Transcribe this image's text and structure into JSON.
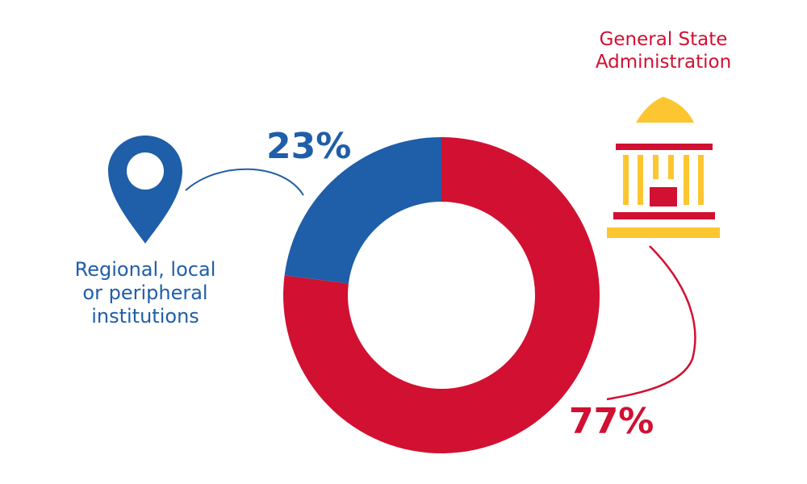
{
  "chart_data": {
    "type": "pie",
    "style": "donut",
    "categories": [
      "Regional, local or peripheral institutions",
      "General State Administration"
    ],
    "values": [
      23,
      77
    ],
    "value_labels": [
      "23%",
      "77%"
    ],
    "colors": [
      "#1f5ea8",
      "#d11032"
    ],
    "legend": "none"
  },
  "labels": {
    "left": [
      "Regional, local",
      "or peripheral",
      "institutions"
    ],
    "right": [
      "General State",
      "Administration"
    ]
  },
  "icons": {
    "left": "map-pin-icon",
    "right": "government-building-icon"
  },
  "colors": {
    "blue": "#1f5ea8",
    "red": "#d11032",
    "yellow": "#fcc630"
  }
}
